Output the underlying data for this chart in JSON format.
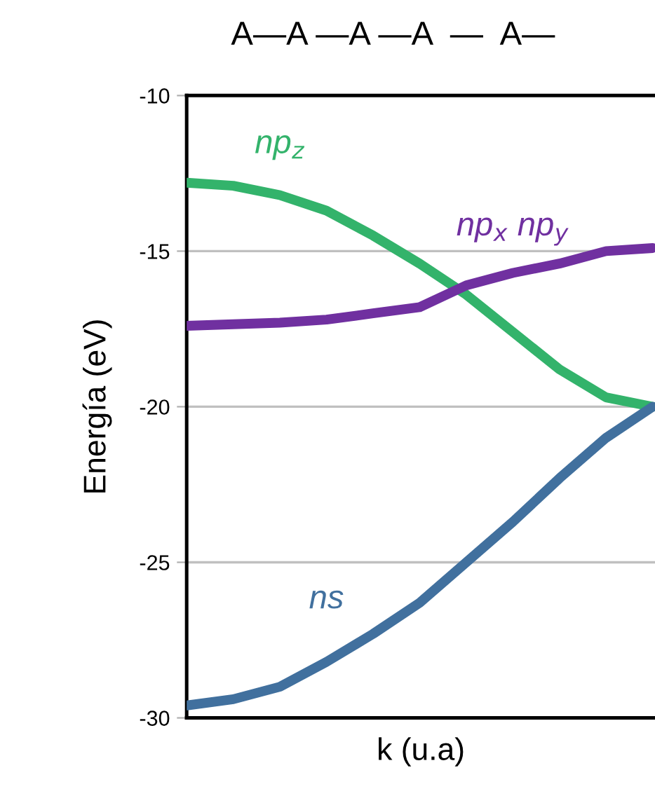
{
  "chart_data": {
    "type": "line",
    "title": "A—A —A —A  —  A—",
    "xlabel": "k (u.a)",
    "ylabel": "Energía (eV)",
    "categories": [
      null,
      null,
      null,
      null,
      null,
      null,
      null,
      null,
      null,
      null,
      null
    ],
    "series": [
      {
        "name": "np$_{z}$",
        "color": "#33b36b",
        "values": [
          -12.8,
          -12.9,
          -13.2,
          -13.7,
          -14.5,
          -15.4,
          -16.4,
          -17.6,
          -18.8,
          -19.7,
          -20.0
        ]
      },
      {
        "name": "np$_{x}$ np$_{y}$",
        "color": "#7030a0",
        "values": [
          -17.4,
          -17.35,
          -17.3,
          -17.2,
          -17.0,
          -16.8,
          -16.1,
          -15.7,
          -15.4,
          -15.0,
          -14.9
        ]
      },
      {
        "name": "ns",
        "color": "#41709e",
        "values": [
          -29.6,
          -29.4,
          -29.0,
          -28.2,
          -27.3,
          -26.3,
          -25.0,
          -23.7,
          -22.3,
          -21.0,
          -20.0
        ]
      }
    ],
    "ylim": [
      -30,
      -10
    ],
    "yticks": [
      -30,
      -25,
      -20,
      -15,
      -10
    ],
    "grid": "y",
    "tick_labels": "y",
    "marker": "none",
    "line_style": "solid"
  }
}
